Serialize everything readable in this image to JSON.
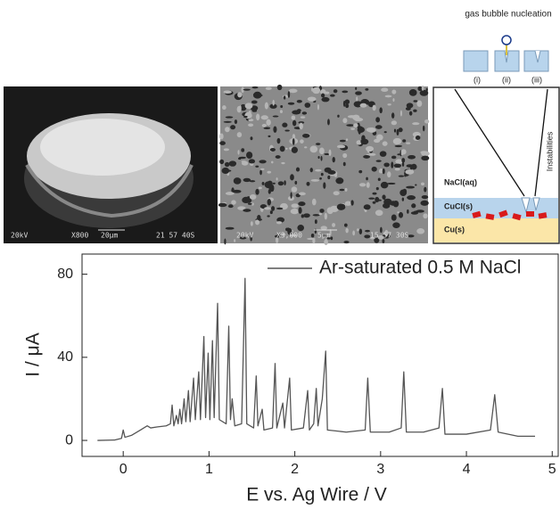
{
  "chart_data": {
    "type": "line",
    "xlabel": "E vs. Ag Wire / V",
    "ylabel": "I / μA",
    "xlim": [
      -0.48,
      5.07
    ],
    "ylim": [
      -7.7,
      89.7
    ],
    "xticks": [
      0,
      1,
      2,
      3,
      4,
      5
    ],
    "yticks": [
      0,
      40,
      80
    ],
    "legend": "upper right",
    "series": [
      {
        "name": "Ar-saturated 0.5 M NaCl",
        "color": "#555555",
        "x": [
          -0.3,
          -0.1,
          -0.02,
          0.0,
          0.02,
          0.1,
          0.2,
          0.28,
          0.32,
          0.4,
          0.5,
          0.55,
          0.57,
          0.59,
          0.62,
          0.64,
          0.66,
          0.68,
          0.71,
          0.73,
          0.76,
          0.78,
          0.82,
          0.84,
          0.88,
          0.9,
          0.94,
          0.96,
          0.99,
          1.01,
          1.04,
          1.06,
          1.1,
          1.12,
          1.2,
          1.23,
          1.25,
          1.27,
          1.3,
          1.38,
          1.42,
          1.44,
          1.52,
          1.55,
          1.57,
          1.62,
          1.64,
          1.74,
          1.77,
          1.79,
          1.86,
          1.88,
          1.94,
          1.96,
          2.1,
          2.15,
          2.17,
          2.22,
          2.25,
          2.27,
          2.32,
          2.36,
          2.38,
          2.6,
          2.82,
          2.85,
          2.88,
          3.1,
          3.24,
          3.27,
          3.3,
          3.5,
          3.68,
          3.72,
          3.75,
          4.0,
          4.28,
          4.33,
          4.37,
          4.6,
          4.8
        ],
        "values": [
          0,
          0.2,
          1,
          5,
          1.5,
          2.5,
          5,
          7,
          6,
          6.5,
          7,
          8,
          17,
          7,
          12,
          8,
          15,
          8,
          20,
          9,
          24,
          9,
          30,
          10,
          33,
          10,
          50,
          11,
          42,
          10,
          48,
          11,
          66,
          10,
          8,
          55,
          10,
          20,
          7,
          8,
          78,
          8,
          6,
          31,
          7,
          15,
          5,
          6,
          37,
          6,
          18,
          6,
          30,
          5,
          6,
          24,
          5,
          8,
          25,
          7,
          20,
          43,
          5,
          4,
          5,
          30,
          4,
          4,
          6,
          33,
          4,
          4,
          6,
          25,
          3,
          3,
          5,
          22,
          4,
          2,
          2
        ]
      }
    ]
  },
  "panels": {
    "sem_low": {
      "labels": [
        "20kV",
        "X800",
        "20μm",
        "21 57 40S"
      ]
    },
    "sem_high": {
      "labels": [
        "20kV",
        "X3,000",
        "5μm",
        "15 57 30S"
      ]
    },
    "schematic": {
      "title": "gas bubble nucleation",
      "steps": [
        "(i)",
        "(ii)",
        "(iii)"
      ],
      "layers": [
        "NaCl(aq)",
        "CuCl(s)",
        "Cu(s)"
      ],
      "side_label": "Instabilities"
    }
  }
}
